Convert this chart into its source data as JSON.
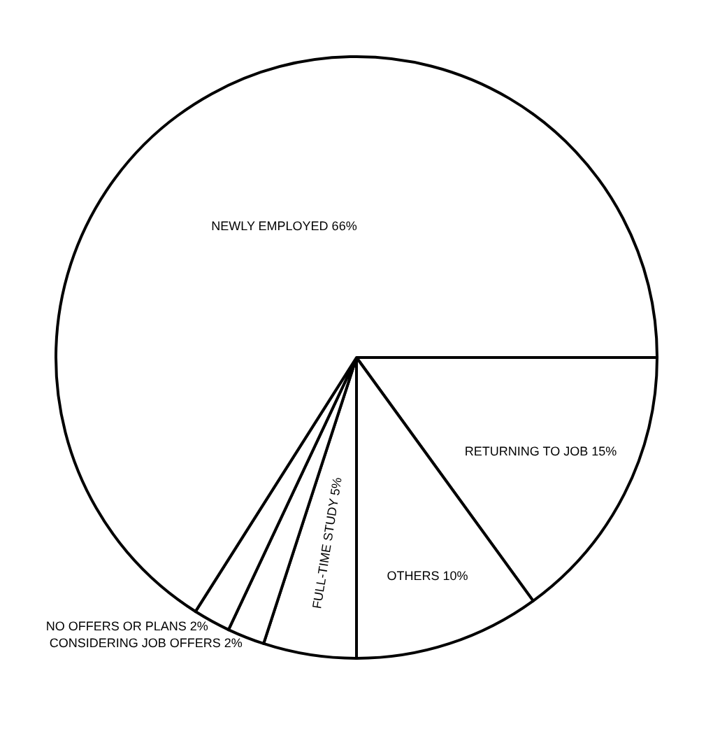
{
  "chart_data": {
    "type": "pie",
    "categories": [
      "RETURNING TO JOB",
      "OTHERS",
      "FULL-TIME STUDY",
      "CONSIDERING JOB OFFERS",
      "NO OFFERS OR PLANS",
      "NEWLY EMPLOYED"
    ],
    "values": [
      15,
      10,
      5,
      2,
      2,
      66
    ],
    "value_labels": [
      "15%",
      "10%",
      "5%",
      "2%",
      "2%",
      "66%"
    ],
    "colors": [
      "#ffffff",
      "#ffffff",
      "#ffffff",
      "#ffffff",
      "#ffffff",
      "#ffffff"
    ],
    "legend": false
  }
}
